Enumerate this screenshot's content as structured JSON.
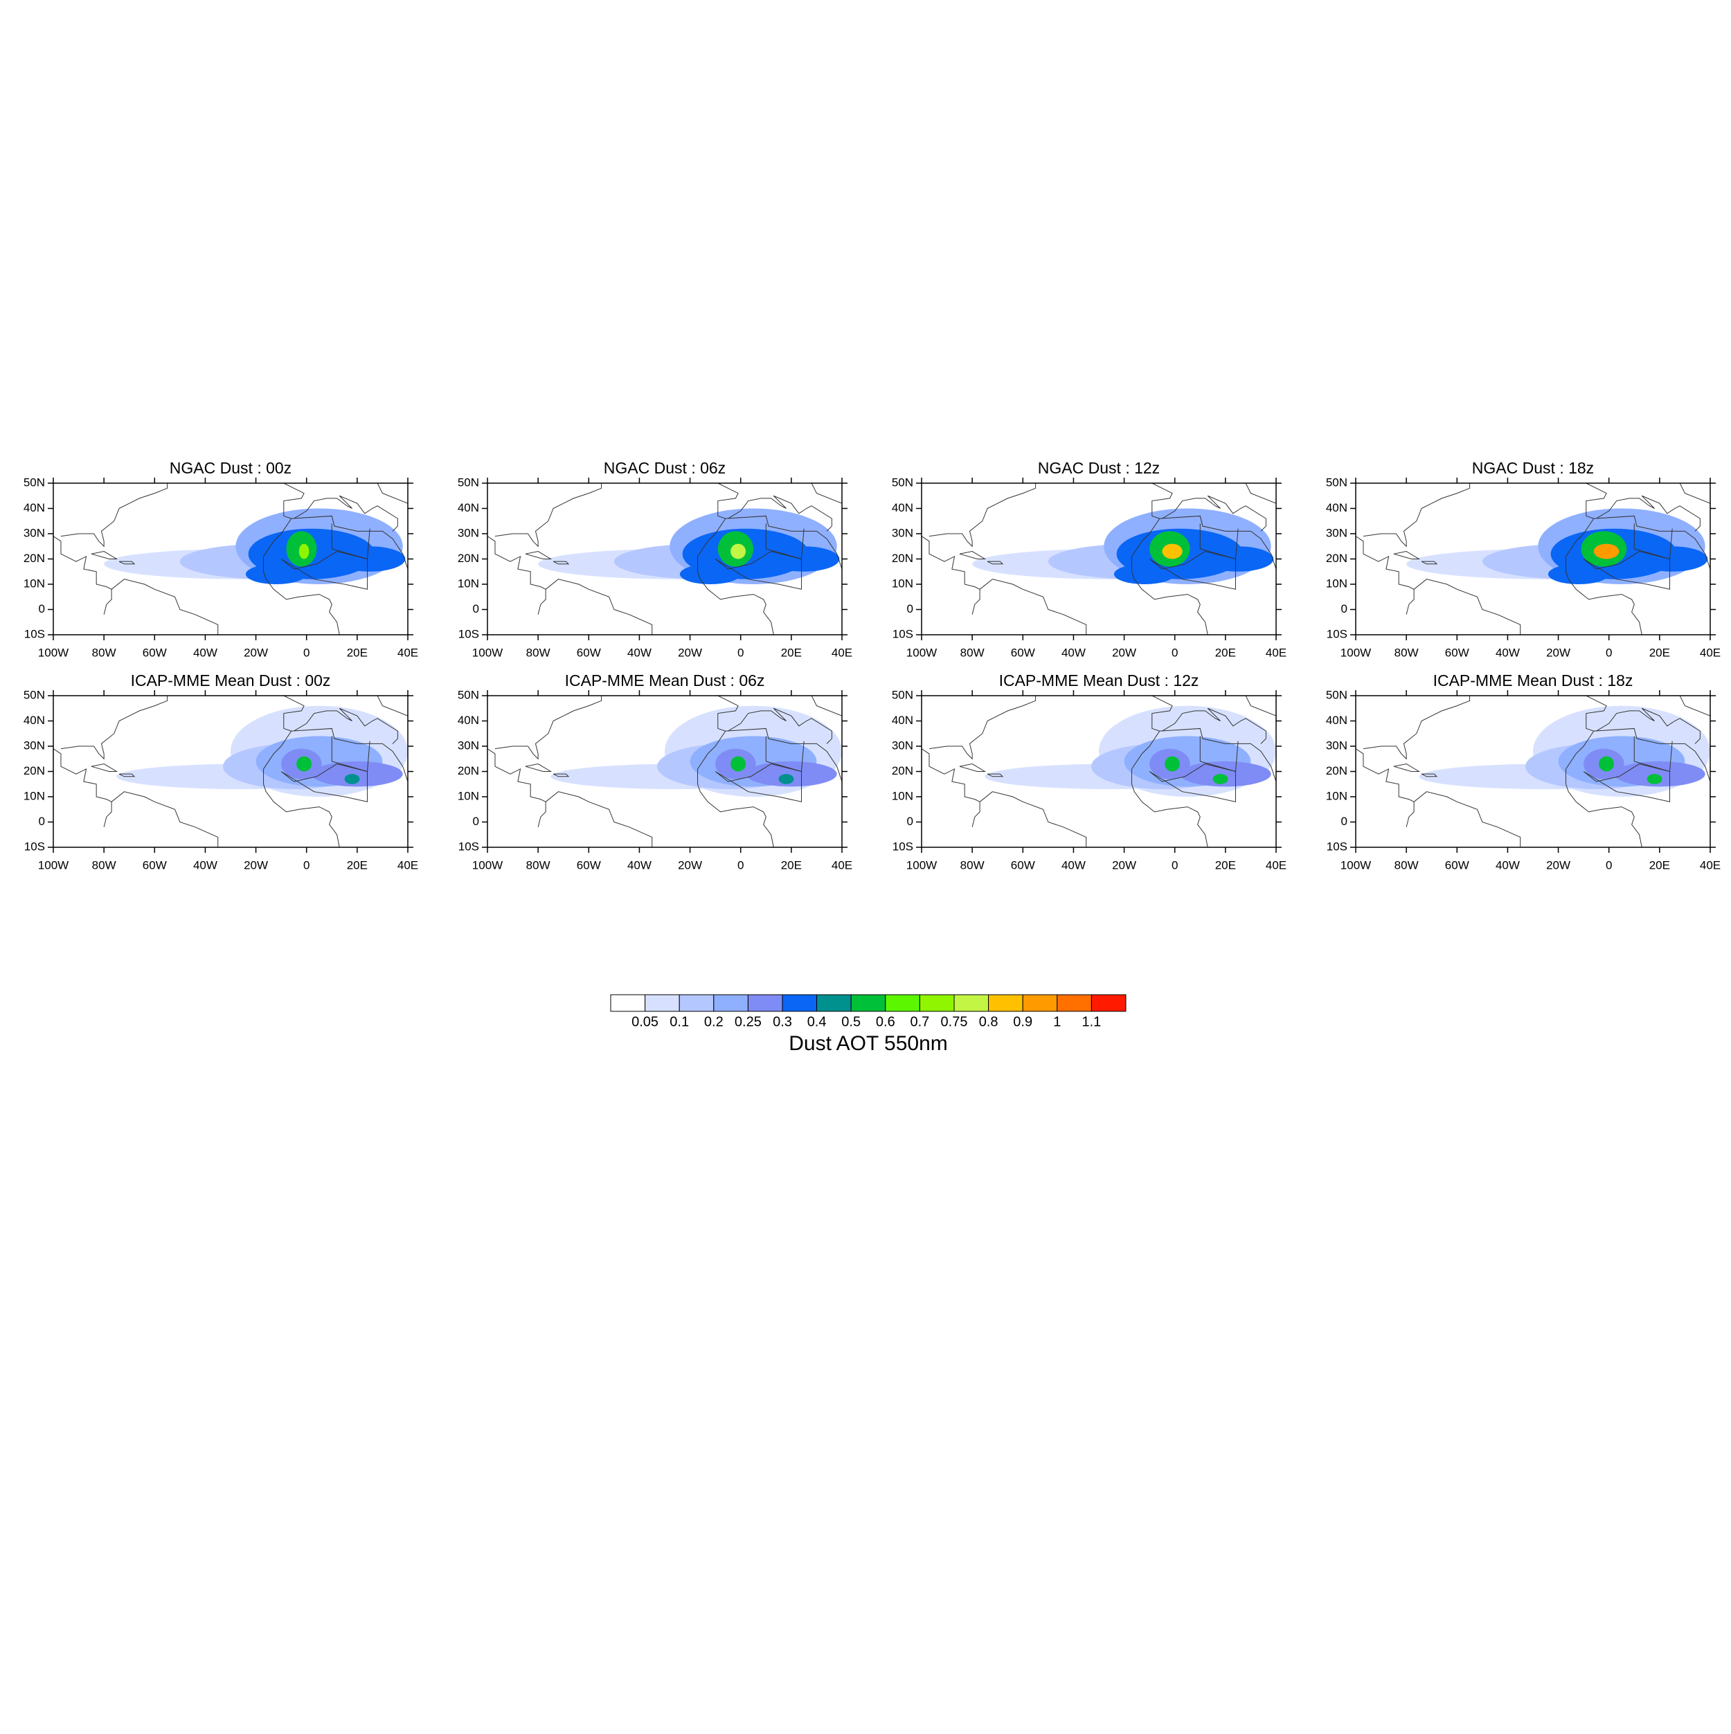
{
  "panels": [
    {
      "title": "NGAC Dust : 00z"
    },
    {
      "title": "NGAC Dust : 06z"
    },
    {
      "title": "NGAC Dust : 12z"
    },
    {
      "title": "NGAC Dust : 18z"
    },
    {
      "title": "ICAP-MME Mean Dust : 00z"
    },
    {
      "title": "ICAP-MME Mean Dust : 06z"
    },
    {
      "title": "ICAP-MME Mean Dust : 12z"
    },
    {
      "title": "ICAP-MME Mean Dust : 18z"
    }
  ],
  "map": {
    "xlim": [
      -100,
      40
    ],
    "ylim": [
      -10,
      50
    ],
    "xticks": [
      {
        "value": -100,
        "label": "100W"
      },
      {
        "value": -80,
        "label": "80W"
      },
      {
        "value": -60,
        "label": "60W"
      },
      {
        "value": -40,
        "label": "40W"
      },
      {
        "value": -20,
        "label": "20W"
      },
      0,
      {
        "value": 20,
        "label": "20E"
      },
      {
        "value": 40,
        "label": "40E"
      }
    ],
    "yticks": [
      {
        "value": -10,
        "label": "10S"
      },
      0,
      {
        "value": 10,
        "label": "10N"
      },
      {
        "value": 20,
        "label": "20N"
      },
      {
        "value": 30,
        "label": "30N"
      },
      {
        "value": 40,
        "label": "40N"
      },
      {
        "value": 50,
        "label": "50N"
      }
    ]
  },
  "colorbar": {
    "title": "Dust AOT 550nm",
    "levels": [
      0.05,
      0.1,
      0.2,
      0.25,
      0.3,
      0.4,
      0.5,
      0.6,
      0.7,
      0.75,
      0.8,
      0.9,
      1,
      1.1
    ],
    "colors": [
      "#ffffff",
      "#d7e1ff",
      "#b5c7ff",
      "#8fb0ff",
      "#7f8cf5",
      "#0a66f5",
      "#00918f",
      "#00c03a",
      "#5cf700",
      "#8ff500",
      "#c3f545",
      "#ffc000",
      "#ff9a00",
      "#ff7000",
      "#ff1a00"
    ]
  }
}
